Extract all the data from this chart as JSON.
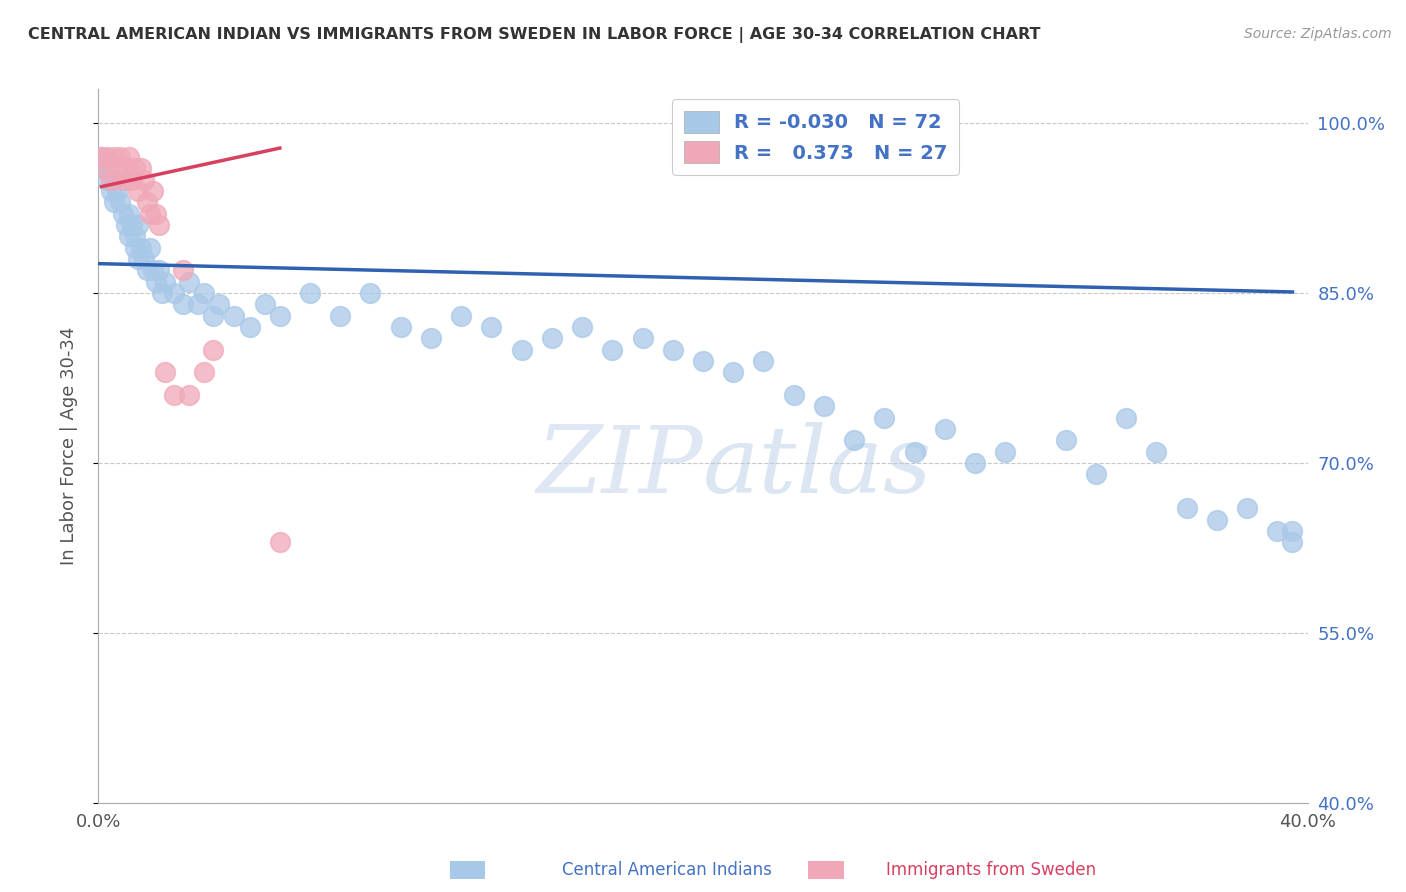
{
  "title": "CENTRAL AMERICAN INDIAN VS IMMIGRANTS FROM SWEDEN IN LABOR FORCE | AGE 30-34 CORRELATION CHART",
  "source": "Source: ZipAtlas.com",
  "ylabel": "In Labor Force | Age 30-34",
  "xlim": [
    0.0,
    0.4
  ],
  "ylim": [
    0.4,
    1.03
  ],
  "yticks": [
    0.4,
    0.55,
    0.7,
    0.85,
    1.0
  ],
  "ytick_labels": [
    "40.0%",
    "55.0%",
    "70.0%",
    "85.0%",
    "100.0%"
  ],
  "xticks": [
    0.0,
    0.4
  ],
  "xtick_labels": [
    "0.0%",
    "40.0%"
  ],
  "legend_blue_r": "-0.030",
  "legend_blue_n": "72",
  "legend_pink_r": "0.373",
  "legend_pink_n": "27",
  "legend_label_blue": "Central American Indians",
  "legend_label_pink": "Immigrants from Sweden",
  "watermark_zip": "ZIP",
  "watermark_atlas": "atlas",
  "blue_color": "#a8c8e8",
  "pink_color": "#f0a8b8",
  "line_blue": "#3060b0",
  "line_pink": "#d84060",
  "blue_scatter_x": [
    0.001,
    0.001,
    0.002,
    0.003,
    0.004,
    0.005,
    0.005,
    0.006,
    0.007,
    0.008,
    0.009,
    0.01,
    0.01,
    0.011,
    0.012,
    0.012,
    0.013,
    0.013,
    0.014,
    0.015,
    0.016,
    0.017,
    0.018,
    0.019,
    0.02,
    0.021,
    0.022,
    0.025,
    0.028,
    0.03,
    0.033,
    0.035,
    0.038,
    0.04,
    0.045,
    0.05,
    0.055,
    0.06,
    0.07,
    0.08,
    0.09,
    0.1,
    0.11,
    0.12,
    0.13,
    0.14,
    0.15,
    0.16,
    0.17,
    0.18,
    0.19,
    0.2,
    0.21,
    0.22,
    0.23,
    0.24,
    0.25,
    0.26,
    0.27,
    0.28,
    0.29,
    0.3,
    0.32,
    0.33,
    0.34,
    0.35,
    0.36,
    0.37,
    0.38,
    0.39,
    0.395,
    0.395
  ],
  "blue_scatter_y": [
    0.97,
    0.96,
    0.96,
    0.95,
    0.94,
    0.95,
    0.93,
    0.94,
    0.93,
    0.92,
    0.91,
    0.92,
    0.9,
    0.91,
    0.9,
    0.89,
    0.91,
    0.88,
    0.89,
    0.88,
    0.87,
    0.89,
    0.87,
    0.86,
    0.87,
    0.85,
    0.86,
    0.85,
    0.84,
    0.86,
    0.84,
    0.85,
    0.83,
    0.84,
    0.83,
    0.82,
    0.84,
    0.83,
    0.85,
    0.83,
    0.85,
    0.82,
    0.81,
    0.83,
    0.82,
    0.8,
    0.81,
    0.82,
    0.8,
    0.81,
    0.8,
    0.79,
    0.78,
    0.79,
    0.76,
    0.75,
    0.72,
    0.74,
    0.71,
    0.73,
    0.7,
    0.71,
    0.72,
    0.69,
    0.74,
    0.71,
    0.66,
    0.65,
    0.66,
    0.64,
    0.64,
    0.63
  ],
  "pink_scatter_x": [
    0.001,
    0.002,
    0.003,
    0.004,
    0.005,
    0.006,
    0.007,
    0.008,
    0.009,
    0.01,
    0.011,
    0.012,
    0.013,
    0.014,
    0.015,
    0.016,
    0.017,
    0.018,
    0.019,
    0.02,
    0.022,
    0.025,
    0.028,
    0.03,
    0.035,
    0.038,
    0.06
  ],
  "pink_scatter_y": [
    0.97,
    0.96,
    0.97,
    0.95,
    0.97,
    0.96,
    0.97,
    0.95,
    0.96,
    0.97,
    0.95,
    0.96,
    0.94,
    0.96,
    0.95,
    0.93,
    0.92,
    0.94,
    0.92,
    0.91,
    0.78,
    0.76,
    0.87,
    0.76,
    0.78,
    0.8,
    0.63
  ],
  "blue_line_x": [
    0.0,
    0.395
  ],
  "blue_line_y": [
    0.876,
    0.851
  ],
  "pink_line_x": [
    0.001,
    0.06
  ],
  "pink_line_y": [
    0.944,
    0.978
  ]
}
